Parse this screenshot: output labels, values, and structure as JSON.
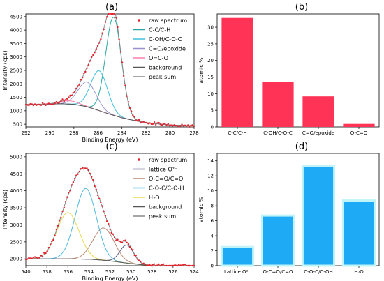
{
  "chart_data": [
    {
      "panel": "(a)",
      "type": "line",
      "xlabel": "Binding Energy (eV)",
      "ylabel": "Intensity (cps)",
      "xlim": [
        292,
        278
      ],
      "ylim": [
        400,
        4600
      ],
      "xticks": [
        292,
        290,
        288,
        286,
        284,
        282,
        280,
        278
      ],
      "yticks": [
        500,
        1000,
        1500,
        2000,
        2500,
        3000,
        3500,
        4000,
        4500
      ],
      "legend_position": "top-right",
      "legend": [
        "raw spectrum",
        "C-C/C-H",
        "C-OH/C-O-C",
        "C=O/epoxide",
        "O=C-O",
        "background",
        "peak sum"
      ],
      "colors": {
        "raw spectrum": "#e8202a",
        "C-C/C-H": "#2aa6a0",
        "C-OH/C-O-C": "#40c0e0",
        "C=O/epoxide": "#9a92d0",
        "O=C-O": "#ff7fa8",
        "background": "#555555",
        "peak sum": "#888888"
      },
      "background": {
        "x": [
          292,
          290,
          289,
          288,
          287,
          286,
          285,
          284,
          283,
          282,
          280,
          278
        ],
        "y": [
          1230,
          1250,
          1260,
          1240,
          1160,
          1020,
          870,
          740,
          640,
          560,
          470,
          440
        ]
      },
      "peaks": [
        {
          "name": "C-C/C-H",
          "center": 284.7,
          "height": 3650,
          "width": 0.65
        },
        {
          "name": "C-OH/C-O-C",
          "center": 285.9,
          "height": 1480,
          "width": 0.7
        },
        {
          "name": "C=O/epoxide",
          "center": 286.9,
          "height": 920,
          "width": 0.75
        },
        {
          "name": "O=C-O",
          "center": 288.4,
          "height": 120,
          "width": 0.8
        }
      ]
    },
    {
      "panel": "(b)",
      "type": "bar",
      "ylabel": "atomic %",
      "categories": [
        "C-C/C-H",
        "C-OH/C-O-C",
        "C=O/epoxide",
        "O-C=O"
      ],
      "values": [
        32.8,
        13.6,
        9.2,
        0.9
      ],
      "ylim": [
        0,
        34
      ],
      "yticks": [
        0,
        5,
        10,
        15,
        20,
        25,
        30
      ],
      "bar_color": "#ff3355"
    },
    {
      "panel": "(c)",
      "type": "line",
      "xlabel": "Binding Energy (eV)",
      "ylabel": "Intensity (cps)",
      "xlim": [
        540,
        524
      ],
      "ylim": [
        1800,
        5100
      ],
      "xticks": [
        540,
        538,
        536,
        534,
        532,
        530,
        528,
        526,
        524
      ],
      "yticks": [
        2000,
        2500,
        3000,
        3500,
        4000,
        4500,
        5000
      ],
      "legend_position": "top-right",
      "legend": [
        "raw spectrum",
        "lattice O²⁻",
        "O-C=O/C=O",
        "C-O-C/C-O-H",
        "H₂O",
        "background",
        "peak sum"
      ],
      "colors": {
        "raw spectrum": "#e8202a",
        "lattice O²⁻": "#5a5a8a",
        "O-C=O/C=O": "#b88870",
        "C-O-C/C-O-H": "#50b8e0",
        "H₂O": "#e8d850",
        "background": "#555555",
        "peak sum": "#888888"
      },
      "background": {
        "x": [
          540,
          536,
          534,
          533,
          532,
          531,
          530,
          529,
          528,
          524
        ],
        "y": [
          2000,
          2000,
          1990,
          1970,
          1940,
          1900,
          1860,
          1830,
          1810,
          1800
        ]
      },
      "peaks": [
        {
          "name": "lattice O²⁻",
          "center": 530.4,
          "height": 530,
          "width": 0.65
        },
        {
          "name": "O-C=O/C=O",
          "center": 532.6,
          "height": 950,
          "width": 1.0
        },
        {
          "name": "C-O-C/C-O-H",
          "center": 534.3,
          "height": 2080,
          "width": 1.0
        },
        {
          "name": "H₂O",
          "center": 536.0,
          "height": 1360,
          "width": 1.05
        }
      ]
    },
    {
      "panel": "(d)",
      "type": "bar",
      "ylabel": "atomic %",
      "categories": [
        "Lattice O²⁻",
        "O-C=O/C=O",
        "C-O-C/C-OH",
        "H₂O"
      ],
      "values": [
        2.5,
        6.7,
        13.3,
        8.7
      ],
      "ylim": [
        0,
        15
      ],
      "yticks": [
        0,
        2,
        4,
        6,
        8,
        10,
        12,
        14
      ],
      "bar_color": "#1eaaf5",
      "bar_edge_color": "#c0f4f8"
    }
  ]
}
